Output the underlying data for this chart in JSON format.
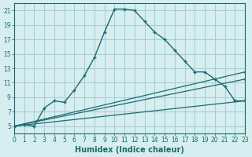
{
  "xlabel": "Humidex (Indice chaleur)",
  "bg_color": "#d6eef0",
  "grid_color": "#aacdd4",
  "line_color": "#1a6b6e",
  "xlim": [
    0,
    23
  ],
  "ylim": [
    4,
    22
  ],
  "yticks": [
    5,
    7,
    9,
    11,
    13,
    15,
    17,
    19,
    21
  ],
  "xticks": [
    0,
    1,
    2,
    3,
    4,
    5,
    6,
    7,
    8,
    9,
    10,
    11,
    12,
    13,
    14,
    15,
    16,
    17,
    18,
    19,
    20,
    21,
    22,
    23
  ],
  "series1_x": [
    0,
    1,
    2,
    3,
    4,
    5,
    6,
    7,
    8,
    9,
    10,
    11,
    12,
    13,
    14,
    15,
    16,
    17,
    18,
    19,
    20,
    21,
    22,
    23
  ],
  "series1_y": [
    5.0,
    5.2,
    5.0,
    7.5,
    8.5,
    8.3,
    10.0,
    12.0,
    14.5,
    18.0,
    21.2,
    21.2,
    21.0,
    19.5,
    18.0,
    17.0,
    15.5,
    14.0,
    12.5,
    12.5,
    11.5,
    10.5,
    8.5,
    8.5
  ],
  "series2_x": [
    0,
    23
  ],
  "series2_y": [
    5.0,
    8.5
  ],
  "series3_x": [
    0,
    23
  ],
  "series3_y": [
    5.0,
    11.5
  ],
  "series4_x": [
    0,
    23
  ],
  "series4_y": [
    5.0,
    12.5
  ]
}
